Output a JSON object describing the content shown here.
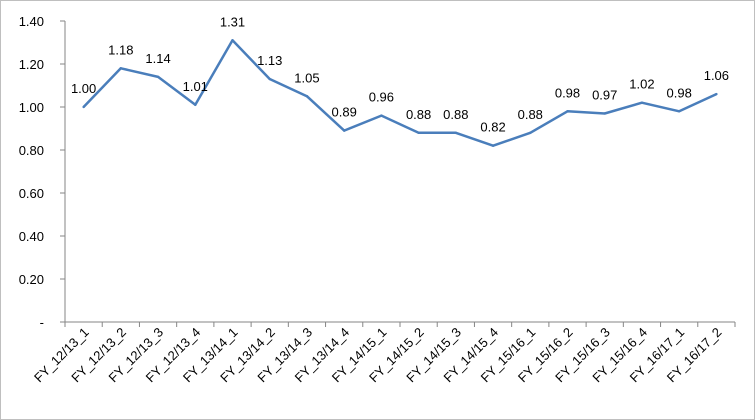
{
  "chart_data": {
    "type": "line",
    "title": "",
    "xlabel": "",
    "ylabel": "",
    "ylim": [
      0,
      1.4
    ],
    "y_ticks": [
      "-",
      "0.20",
      "0.40",
      "0.60",
      "0.80",
      "1.00",
      "1.20",
      "1.40"
    ],
    "grid": false,
    "legend": "none",
    "categories": [
      "FY_12/13_1",
      "FY_12/13_2",
      "FY_12/13_3",
      "FY_12/13_4",
      "FY_13/14_1",
      "FY_13/14_2",
      "FY_13/14_3",
      "FY_13/14_4",
      "FY_14/15_1",
      "FY_14/15_2",
      "FY_14/15_3",
      "FY_14/15_4",
      "FY_15/16_1",
      "FY_15/16_2",
      "FY_15/16_3",
      "FY_15/16_4",
      "FY_16/17_1",
      "FY_16/17_2"
    ],
    "series": [
      {
        "values": [
          1.0,
          1.18,
          1.14,
          1.01,
          1.31,
          1.13,
          1.05,
          0.89,
          0.96,
          0.88,
          0.88,
          0.82,
          0.88,
          0.98,
          0.97,
          1.02,
          0.98,
          1.06
        ],
        "labels": [
          "1.00",
          "1.18",
          "1.14",
          "1.01",
          "1.31",
          "1.13",
          "1.05",
          "0.89",
          "0.96",
          "0.88",
          "0.88",
          "0.82",
          "0.88",
          "0.98",
          "0.97",
          "1.02",
          "0.98",
          "1.06"
        ],
        "color": "#4a7ebb"
      }
    ],
    "axis_color": "#868686"
  }
}
